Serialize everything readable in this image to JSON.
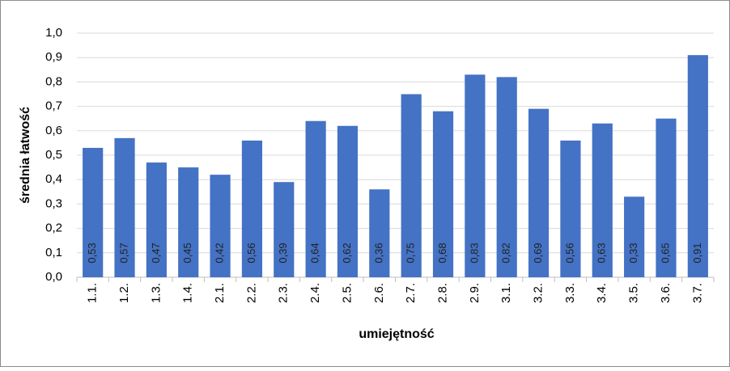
{
  "chart_data": {
    "type": "bar",
    "x_label": "umiejętność",
    "y_label": "średnia łatwość",
    "categories": [
      "1.1.",
      "1.2.",
      "1.3.",
      "1.4.",
      "2.1.",
      "2.2.",
      "2.3.",
      "2.4.",
      "2.5.",
      "2.6.",
      "2.7.",
      "2.8.",
      "2.9.",
      "3.1.",
      "3.2.",
      "3.3.",
      "3.4.",
      "3.5.",
      "3.6.",
      "3.7."
    ],
    "values": [
      0.53,
      0.57,
      0.47,
      0.45,
      0.42,
      0.56,
      0.39,
      0.64,
      0.62,
      0.36,
      0.75,
      0.68,
      0.83,
      0.82,
      0.69,
      0.56,
      0.63,
      0.33,
      0.65,
      0.91
    ],
    "value_labels": [
      "0,53",
      "0,57",
      "0,47",
      "0,45",
      "0,42",
      "0,56",
      "0,39",
      "0,64",
      "0,62",
      "0,36",
      "0,75",
      "0,68",
      "0,83",
      "0,82",
      "0,69",
      "0,56",
      "0,63",
      "0,33",
      "0,65",
      "0,91"
    ],
    "color": "#4472c4",
    "ylim": [
      0,
      1
    ],
    "yticks": [
      {
        "value": 0,
        "label": "0,0"
      },
      {
        "value": 0.1,
        "label": "0,1"
      },
      {
        "value": 0.2,
        "label": "0,2"
      },
      {
        "value": 0.3,
        "label": "0,3"
      },
      {
        "value": 0.4,
        "label": "0,4"
      },
      {
        "value": 0.5,
        "label": "0,5"
      },
      {
        "value": 0.6,
        "label": "0,6"
      },
      {
        "value": 0.7,
        "label": "0,7"
      },
      {
        "value": 0.8,
        "label": "0,8"
      },
      {
        "value": 0.9,
        "label": "0,9"
      },
      {
        "value": 1,
        "label": "1,0"
      }
    ],
    "grid": true
  }
}
